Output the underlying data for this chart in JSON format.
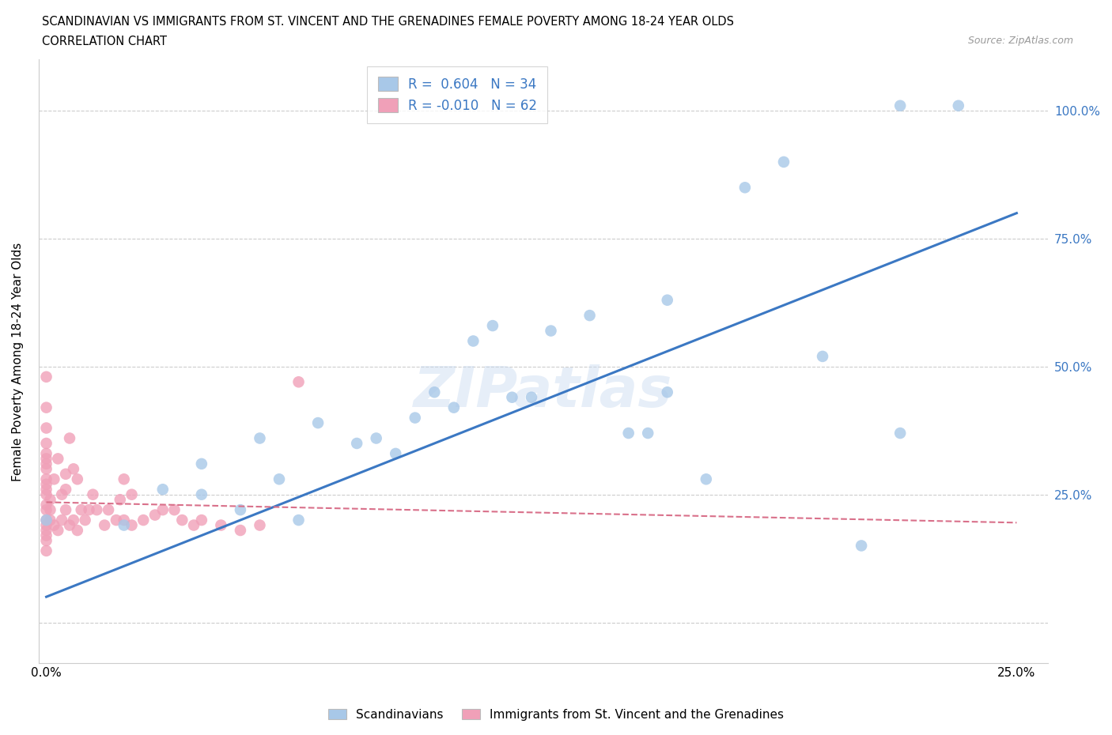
{
  "title_line1": "SCANDINAVIAN VS IMMIGRANTS FROM ST. VINCENT AND THE GRENADINES FEMALE POVERTY AMONG 18-24 YEAR OLDS",
  "title_line2": "CORRELATION CHART",
  "source": "Source: ZipAtlas.com",
  "ylabel": "Female Poverty Among 18-24 Year Olds",
  "xmin": -0.002,
  "xmax": 0.258,
  "ymin": -0.08,
  "ymax": 1.1,
  "xticks": [
    0.0,
    0.05,
    0.1,
    0.15,
    0.2,
    0.25
  ],
  "xtick_labels": [
    "0.0%",
    "",
    "",
    "",
    "",
    "25.0%"
  ],
  "ytick_positions": [
    0.0,
    0.25,
    0.5,
    0.75,
    1.0
  ],
  "ytick_labels": [
    "",
    "25.0%",
    "50.0%",
    "75.0%",
    "100.0%"
  ],
  "watermark": "ZIPatlas",
  "blue_color": "#a8c8e8",
  "pink_color": "#f0a0b8",
  "blue_line_color": "#3b78c3",
  "pink_line_color": "#d9708a",
  "scandinavian_x": [
    0.0,
    0.02,
    0.03,
    0.04,
    0.04,
    0.05,
    0.055,
    0.06,
    0.065,
    0.07,
    0.08,
    0.085,
    0.09,
    0.095,
    0.1,
    0.105,
    0.11,
    0.115,
    0.12,
    0.125,
    0.13,
    0.14,
    0.15,
    0.155,
    0.16,
    0.17,
    0.18,
    0.19,
    0.2,
    0.21,
    0.22,
    0.235,
    0.16,
    0.22
  ],
  "scandinavian_y": [
    0.2,
    0.19,
    0.26,
    0.25,
    0.31,
    0.22,
    0.36,
    0.28,
    0.2,
    0.39,
    0.35,
    0.36,
    0.33,
    0.4,
    0.45,
    0.42,
    0.55,
    0.58,
    0.44,
    0.44,
    0.57,
    0.6,
    0.37,
    0.37,
    0.45,
    0.28,
    0.85,
    0.9,
    0.52,
    0.15,
    1.01,
    1.01,
    0.63,
    0.37
  ],
  "immigrant_x": [
    0.0,
    0.0,
    0.0,
    0.0,
    0.0,
    0.0,
    0.0,
    0.0,
    0.0,
    0.0,
    0.0,
    0.0,
    0.0,
    0.0,
    0.0,
    0.0,
    0.0,
    0.0,
    0.0,
    0.0,
    0.001,
    0.001,
    0.001,
    0.002,
    0.002,
    0.003,
    0.003,
    0.004,
    0.004,
    0.005,
    0.005,
    0.005,
    0.006,
    0.006,
    0.007,
    0.007,
    0.008,
    0.008,
    0.009,
    0.01,
    0.011,
    0.012,
    0.013,
    0.015,
    0.016,
    0.018,
    0.019,
    0.02,
    0.02,
    0.022,
    0.022,
    0.025,
    0.028,
    0.03,
    0.033,
    0.035,
    0.038,
    0.04,
    0.045,
    0.05,
    0.055,
    0.065
  ],
  "immigrant_y": [
    0.48,
    0.42,
    0.38,
    0.35,
    0.33,
    0.32,
    0.31,
    0.3,
    0.28,
    0.27,
    0.26,
    0.25,
    0.23,
    0.22,
    0.2,
    0.19,
    0.18,
    0.17,
    0.16,
    0.14,
    0.2,
    0.22,
    0.24,
    0.19,
    0.28,
    0.18,
    0.32,
    0.2,
    0.25,
    0.22,
    0.26,
    0.29,
    0.19,
    0.36,
    0.2,
    0.3,
    0.18,
    0.28,
    0.22,
    0.2,
    0.22,
    0.25,
    0.22,
    0.19,
    0.22,
    0.2,
    0.24,
    0.2,
    0.28,
    0.19,
    0.25,
    0.2,
    0.21,
    0.22,
    0.22,
    0.2,
    0.19,
    0.2,
    0.19,
    0.18,
    0.19,
    0.47
  ],
  "blue_trendline_x0": 0.0,
  "blue_trendline_y0": 0.05,
  "blue_trendline_x1": 0.25,
  "blue_trendline_y1": 0.8,
  "pink_trendline_x0": 0.0,
  "pink_trendline_y0": 0.235,
  "pink_trendline_x1": 0.25,
  "pink_trendline_y1": 0.195
}
